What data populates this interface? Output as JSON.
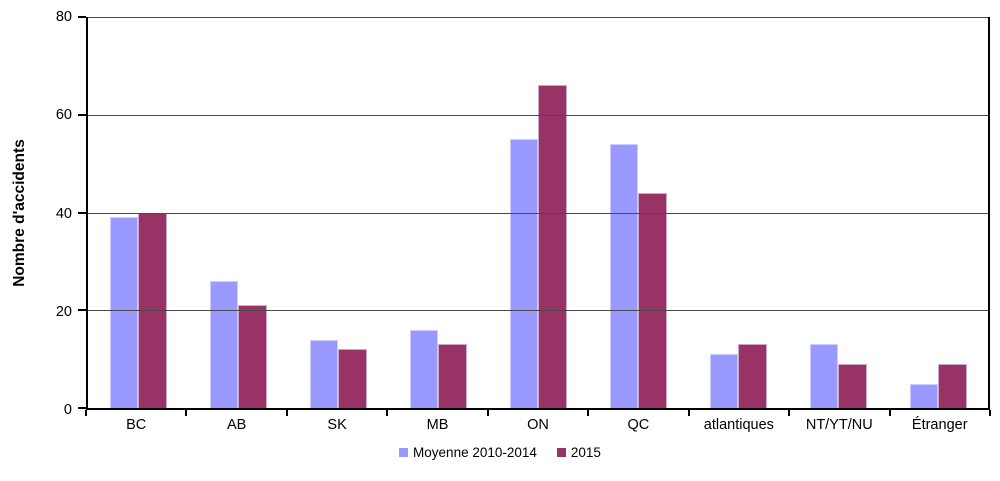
{
  "chart_data": {
    "type": "bar",
    "categories": [
      "BC",
      "AB",
      "SK",
      "MB",
      "ON",
      "QC",
      "atlantiques",
      "NT/YT/NU",
      "Étranger"
    ],
    "series": [
      {
        "name": "Moyenne 2010-2014",
        "color": "#9999FF",
        "border_color": "#CCCCFF",
        "values": [
          39,
          26,
          14,
          16,
          55,
          54,
          11,
          13,
          5
        ]
      },
      {
        "name": "2015",
        "color": "#993366",
        "border_color": "#CCAACC",
        "values": [
          40,
          21,
          12,
          13,
          66,
          44,
          13,
          9,
          9
        ]
      }
    ],
    "xlabel": "",
    "ylabel": "Nombre d'accidents",
    "ylim": [
      0,
      80
    ],
    "yticks": [
      0,
      20,
      40,
      60,
      80
    ],
    "grid": true,
    "legend_position": "bottom",
    "axis_color": "#000000",
    "gridline_color": "#4a4a4a",
    "background_color": "#ffffff"
  }
}
